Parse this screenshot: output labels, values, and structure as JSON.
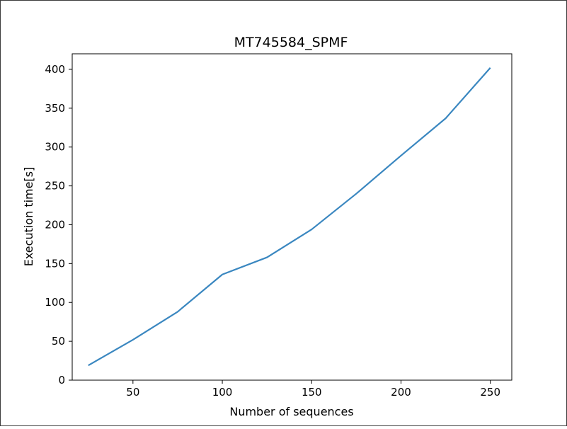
{
  "colors": {
    "line": "#3a87c0",
    "axes": "#000000",
    "frame": "#3c3c3c"
  },
  "chart_data": {
    "type": "line",
    "title": "MT745584_SPMF",
    "xlabel": "Number of sequences",
    "ylabel": "Execution time[s]",
    "xlim": [
      16,
      262
    ],
    "ylim": [
      0,
      420
    ],
    "xticks": [
      50,
      100,
      150,
      200,
      250
    ],
    "yticks": [
      0,
      50,
      100,
      150,
      200,
      250,
      300,
      350,
      400
    ],
    "grid": false,
    "series": [
      {
        "x": [
          25,
          50,
          75,
          100,
          125,
          150,
          175,
          200,
          225,
          250
        ],
        "y": [
          19,
          52,
          88,
          136,
          158,
          194,
          240,
          289,
          337,
          402
        ]
      }
    ]
  }
}
